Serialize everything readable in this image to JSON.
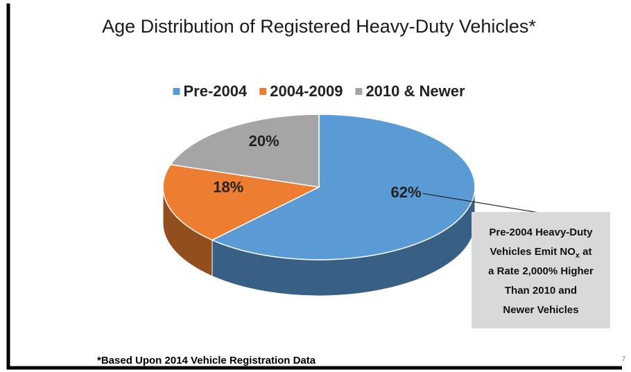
{
  "chart_data": {
    "type": "pie",
    "title": "Age Distribution of Registered Heavy-Duty Vehicles*",
    "categories": [
      "Pre-2004",
      "2004-2009",
      "2010 & Newer"
    ],
    "values": [
      62,
      18,
      20
    ],
    "value_labels": [
      "62%",
      "18%",
      "20%"
    ],
    "colors": [
      "#5b9bd5",
      "#ed7d31",
      "#a5a5a5"
    ],
    "legend": "top",
    "annotation_lines": [
      "Pre-2004 Heavy-Duty",
      [
        "Vehicles Emit NO",
        "x",
        " at"
      ],
      "a Rate 2,000% Higher",
      "Than 2010 and",
      "Newer Vehicles"
    ],
    "footnote": "*Based Upon 2014 Vehicle Registration Data",
    "page_number": "7"
  }
}
